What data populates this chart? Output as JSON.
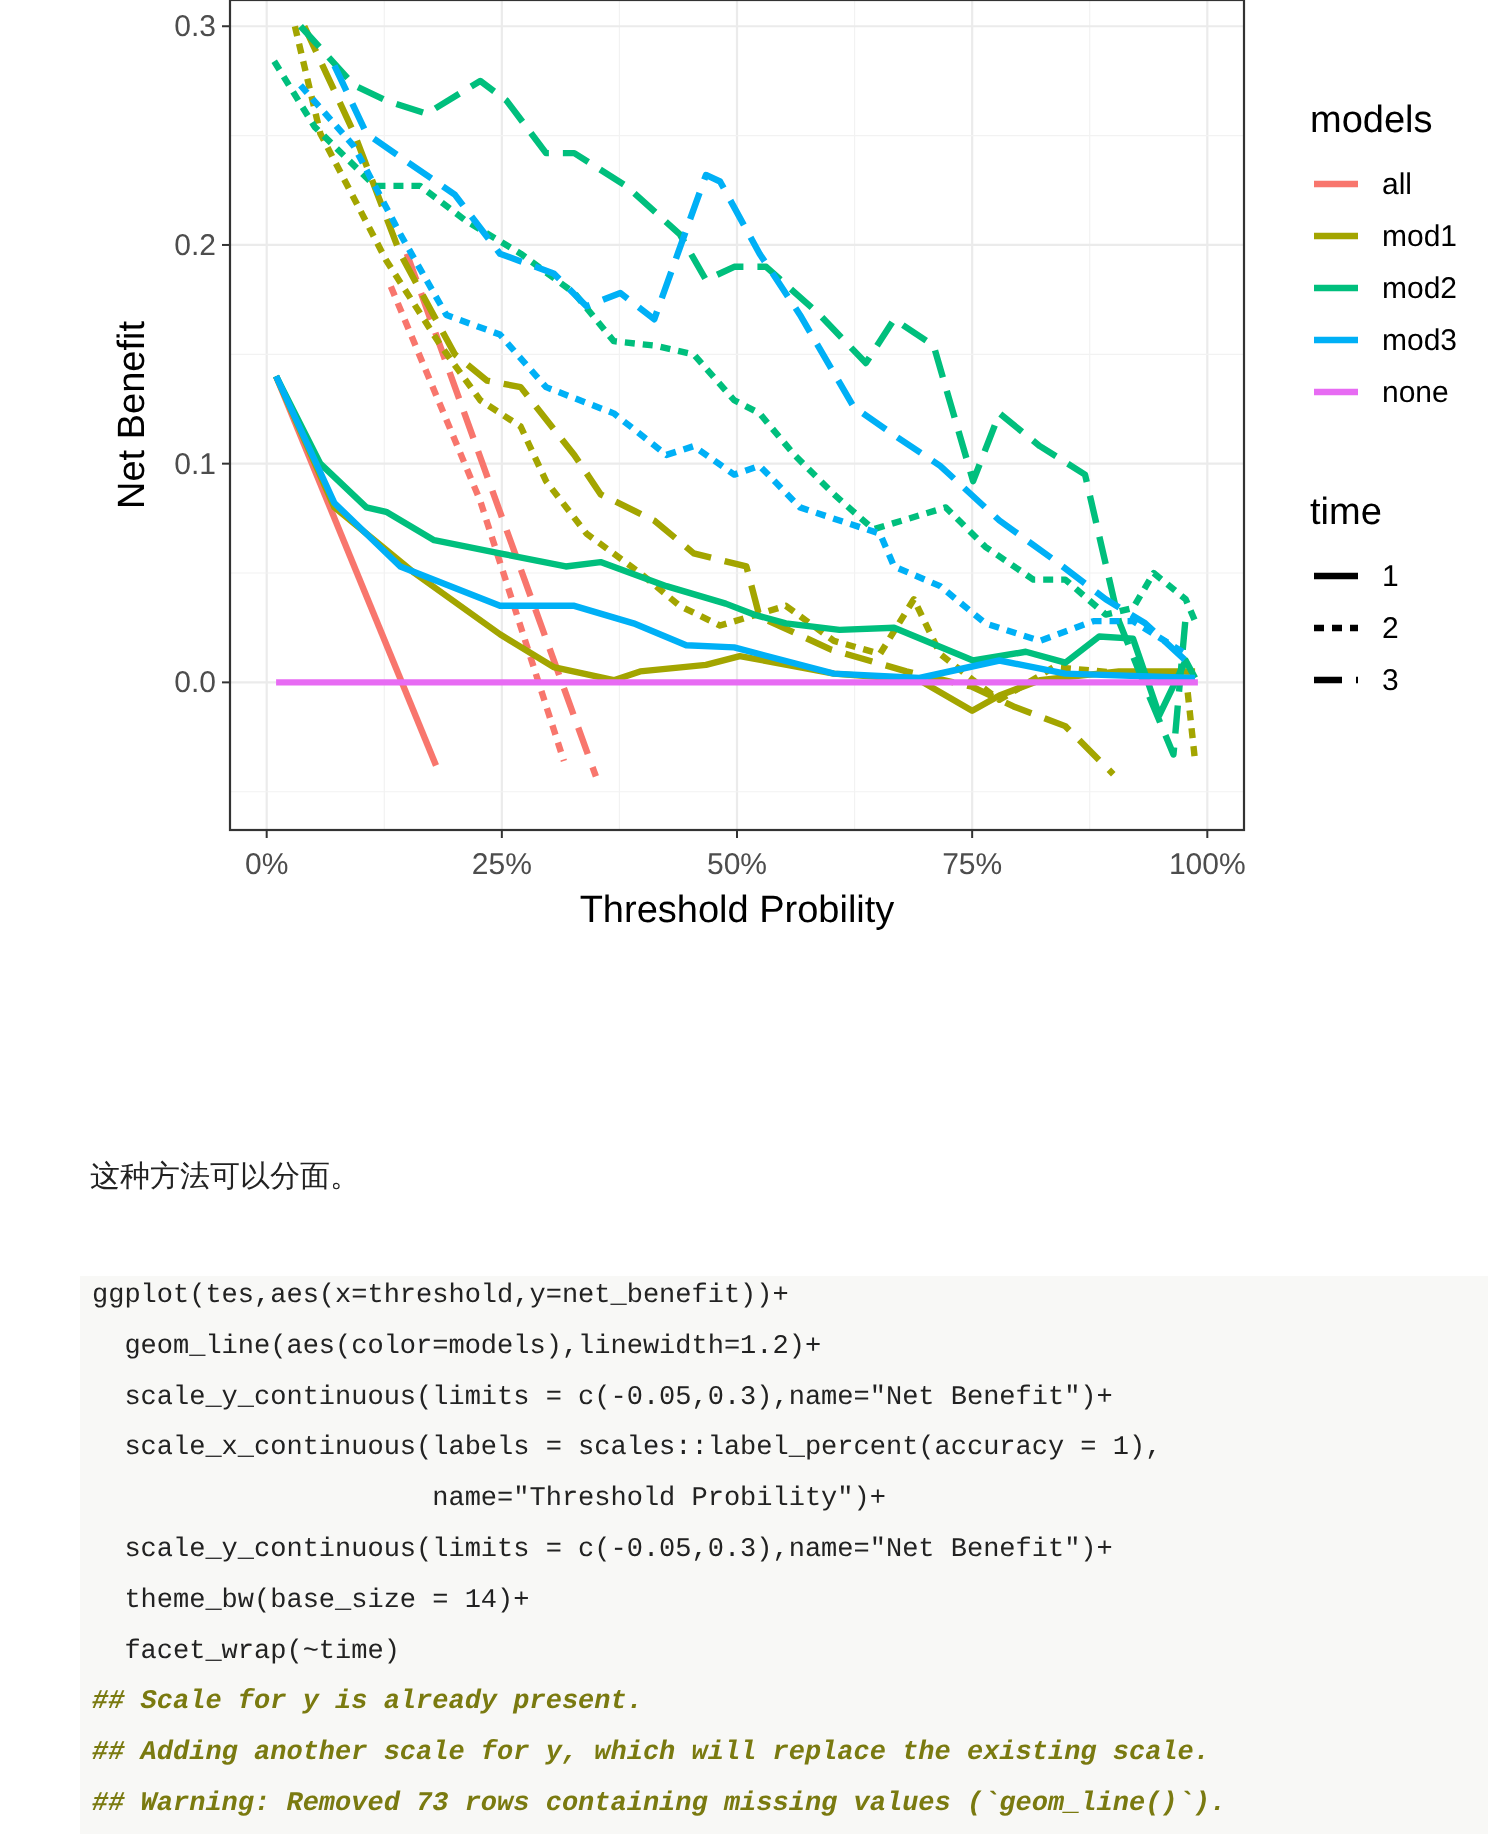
{
  "chart_data": {
    "type": "line",
    "xlabel": "Threshold Probility",
    "ylabel": "Net Benefit",
    "legend_title": "models",
    "legend": "right",
    "grid": true,
    "xlim": [
      -0.039,
      1.039
    ],
    "xticks": [
      {
        "value": 0,
        "label": "0%"
      },
      {
        "value": 0.25,
        "label": "25%"
      },
      {
        "value": 0.5,
        "label": "50%"
      },
      {
        "value": 0.75,
        "label": "75%"
      },
      {
        "value": 1,
        "label": "100%"
      }
    ],
    "ylim": [
      -0.0675,
      0.312
    ],
    "yticks": [
      {
        "value": 0,
        "label": "0.0"
      },
      {
        "value": 0.1,
        "label": "0.1"
      },
      {
        "value": 0.2,
        "label": "0.2"
      },
      {
        "value": 0.3,
        "label": "0.3"
      }
    ],
    "series": [
      {
        "name": "all",
        "color": "#f8766d",
        "line_style": "solid",
        "x": [
          0.01,
          0.18
        ],
        "values": [
          0.14,
          -0.038
        ]
      },
      {
        "color": "#f8766d",
        "line_style": "dotted",
        "x": [
          0.132,
          0.227,
          0.316
        ],
        "values": [
          0.181,
          0.083,
          -0.036
        ]
      },
      {
        "color": "#f8766d",
        "line_style": "dashed",
        "x": [
          0.149,
          0.248,
          0.35
        ],
        "values": [
          0.196,
          0.078,
          -0.043
        ]
      },
      {
        "name": "mod1",
        "color": "#a3a500",
        "line_style": "solid",
        "x": [
          0.01,
          0.072,
          0.157,
          0.248,
          0.305,
          0.369,
          0.397,
          0.467,
          0.503,
          0.603,
          0.694,
          0.75,
          0.779,
          0.822,
          0.906,
          0.987
        ],
        "values": [
          0.14,
          0.08,
          0.05,
          0.022,
          0.007,
          0.001,
          0.005,
          0.008,
          0.012,
          0.004,
          0.001,
          -0.013,
          -0.006,
          0.001,
          0.005,
          0.005
        ]
      },
      {
        "color": "#a3a500",
        "line_style": "dotted",
        "x": [
          0.03,
          0.057,
          0.127,
          0.185,
          0.227,
          0.27,
          0.297,
          0.34,
          0.397,
          0.439,
          0.482,
          0.552,
          0.603,
          0.652,
          0.688,
          0.716,
          0.751,
          0.779,
          0.837,
          0.913,
          0.977,
          0.987
        ],
        "values": [
          0.3,
          0.251,
          0.193,
          0.154,
          0.129,
          0.117,
          0.092,
          0.068,
          0.05,
          0.035,
          0.026,
          0.035,
          0.019,
          0.013,
          0.038,
          0.013,
          0.001,
          -0.008,
          0.007,
          0.004,
          0.004,
          -0.036
        ]
      },
      {
        "color": "#a3a500",
        "line_style": "dashed",
        "x": [
          0.04,
          0.093,
          0.142,
          0.2,
          0.234,
          0.27,
          0.327,
          0.355,
          0.412,
          0.454,
          0.51,
          0.524,
          0.6,
          0.68,
          0.75,
          0.794,
          0.849,
          0.9
        ],
        "values": [
          0.3,
          0.251,
          0.196,
          0.15,
          0.138,
          0.135,
          0.104,
          0.086,
          0.074,
          0.059,
          0.053,
          0.03,
          0.015,
          0.005,
          -0.002,
          -0.011,
          -0.02,
          -0.042
        ]
      },
      {
        "name": "mod2",
        "color": "#00bf7d",
        "line_style": "solid",
        "x": [
          0.01,
          0.057,
          0.106,
          0.127,
          0.178,
          0.248,
          0.318,
          0.355,
          0.425,
          0.488,
          0.518,
          0.552,
          0.609,
          0.667,
          0.751,
          0.807,
          0.849,
          0.885,
          0.921,
          0.949,
          0.977,
          0.987
        ],
        "values": [
          0.14,
          0.1,
          0.08,
          0.078,
          0.065,
          0.059,
          0.053,
          0.055,
          0.044,
          0.036,
          0.031,
          0.027,
          0.024,
          0.025,
          0.01,
          0.014,
          0.009,
          0.021,
          0.02,
          -0.015,
          0.01,
          0.002
        ]
      },
      {
        "color": "#00bf7d",
        "line_style": "dotted",
        "x": [
          0.008,
          0.051,
          0.115,
          0.163,
          0.212,
          0.27,
          0.327,
          0.369,
          0.412,
          0.454,
          0.497,
          0.524,
          0.561,
          0.603,
          0.645,
          0.722,
          0.764,
          0.815,
          0.849,
          0.892,
          0.921,
          0.943,
          0.977,
          0.987
        ],
        "values": [
          0.284,
          0.254,
          0.227,
          0.227,
          0.211,
          0.196,
          0.178,
          0.156,
          0.154,
          0.15,
          0.129,
          0.123,
          0.104,
          0.086,
          0.07,
          0.08,
          0.062,
          0.047,
          0.047,
          0.031,
          0.034,
          0.05,
          0.038,
          0.028
        ]
      },
      {
        "color": "#00bf7d",
        "line_style": "dashed",
        "x": [
          0.036,
          0.093,
          0.127,
          0.17,
          0.227,
          0.255,
          0.297,
          0.327,
          0.382,
          0.439,
          0.467,
          0.497,
          0.531,
          0.588,
          0.637,
          0.667,
          0.709,
          0.751,
          0.779,
          0.822,
          0.87,
          0.906,
          0.934,
          0.964,
          0.977
        ],
        "values": [
          0.3,
          0.273,
          0.266,
          0.26,
          0.275,
          0.266,
          0.242,
          0.242,
          0.227,
          0.205,
          0.184,
          0.19,
          0.19,
          0.168,
          0.146,
          0.166,
          0.154,
          0.092,
          0.123,
          0.108,
          0.095,
          0.028,
          -0.002,
          -0.033,
          0.03
        ]
      },
      {
        "name": "mod3",
        "color": "#00b0f6",
        "line_style": "solid",
        "x": [
          0.01,
          0.072,
          0.142,
          0.248,
          0.327,
          0.39,
          0.446,
          0.497,
          0.603,
          0.694,
          0.779,
          0.849,
          0.987
        ],
        "values": [
          0.14,
          0.082,
          0.053,
          0.035,
          0.035,
          0.027,
          0.017,
          0.016,
          0.004,
          0.002,
          0.01,
          0.004,
          0.002
        ]
      },
      {
        "color": "#00b0f6",
        "line_style": "dotted",
        "x": [
          0.036,
          0.093,
          0.142,
          0.191,
          0.248,
          0.297,
          0.369,
          0.425,
          0.454,
          0.497,
          0.524,
          0.567,
          0.609,
          0.652,
          0.667,
          0.716,
          0.764,
          0.822,
          0.879,
          0.921,
          0.977
        ],
        "values": [
          0.273,
          0.245,
          0.205,
          0.168,
          0.159,
          0.135,
          0.123,
          0.104,
          0.108,
          0.095,
          0.099,
          0.08,
          0.074,
          0.068,
          0.053,
          0.044,
          0.027,
          0.019,
          0.028,
          0.028,
          0.013
        ]
      },
      {
        "color": "#00b0f6",
        "line_style": "dashed",
        "x": [
          0.072,
          0.106,
          0.136,
          0.2,
          0.248,
          0.305,
          0.34,
          0.376,
          0.412,
          0.467,
          0.482,
          0.524,
          0.567,
          0.624,
          0.667,
          0.716,
          0.779,
          0.837,
          0.892,
          0.934,
          0.977
        ],
        "values": [
          0.282,
          0.251,
          0.242,
          0.223,
          0.196,
          0.187,
          0.172,
          0.178,
          0.166,
          0.232,
          0.229,
          0.196,
          0.168,
          0.126,
          0.113,
          0.099,
          0.074,
          0.056,
          0.038,
          0.027,
          0.01
        ]
      },
      {
        "name": "none",
        "color": "#e76bf3",
        "line_style": "solid",
        "x": [
          0.01,
          0.99
        ],
        "values": [
          0,
          0
        ]
      }
    ],
    "annotations": [
      "time",
      "1",
      "2",
      "3",
      "这种方法可以分面。",
      "ggplot(tes,aes(x=threshold,y=net_benefit))+",
      "  geom_line(aes(color=models),linewidth=1.2)+",
      "  scale_y_continuous(limits = c(-0.05,0.3),name=\"Net Benefit\")+",
      "  scale_x_continuous(labels = scales::label_percent(accuracy = 1),",
      "                     name=\"Threshold Probility\")+",
      "  scale_y_continuous(limits = c(-0.05,0.3),name=\"Net Benefit\")+",
      "  theme_bw(base_size = 14)+",
      "  facet_wrap(~time)",
      "## Scale for y is already present.",
      "## Adding another scale for y, which will replace the existing scale.",
      "## Warning: Removed 73 rows containing missing values (`geom_line()`)."
    ]
  }
}
